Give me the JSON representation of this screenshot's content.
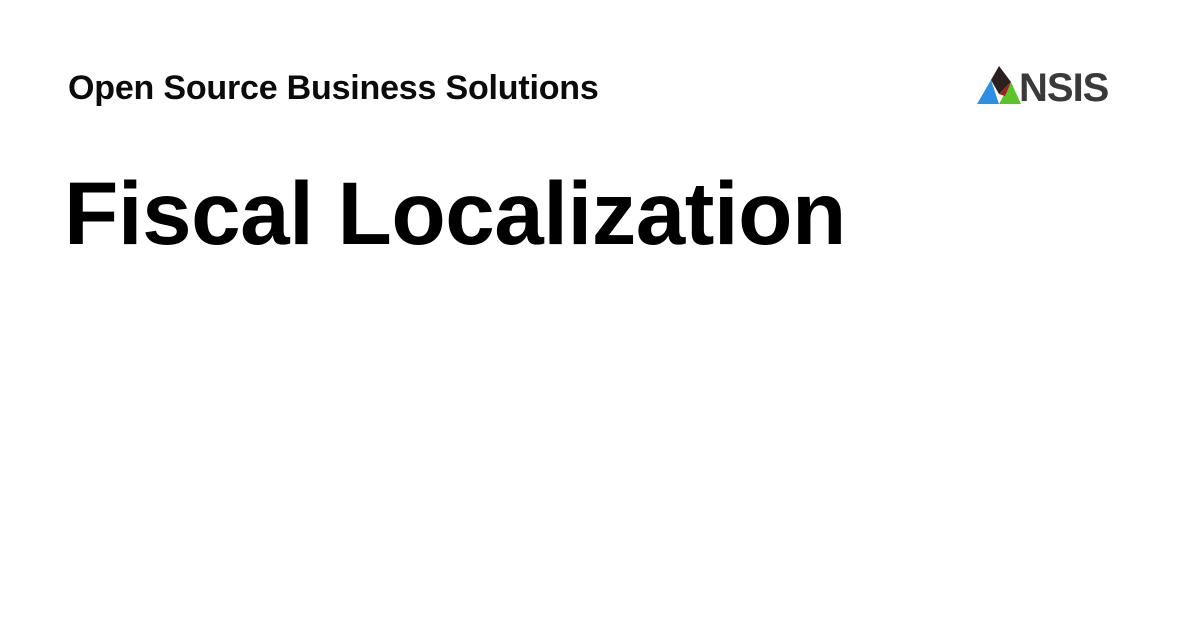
{
  "header": {
    "site_name": "Open Source Business Solutions"
  },
  "main": {
    "title": "Fiscal Localization"
  },
  "logo": {
    "text": "NSIS",
    "icon": "triangle-a-logo-icon",
    "colors": {
      "dark": "#2b1f1f",
      "red": "#a51c1c",
      "blue": "#2d8ee6",
      "green": "#5ac428",
      "text": "#3a3a3a"
    }
  }
}
